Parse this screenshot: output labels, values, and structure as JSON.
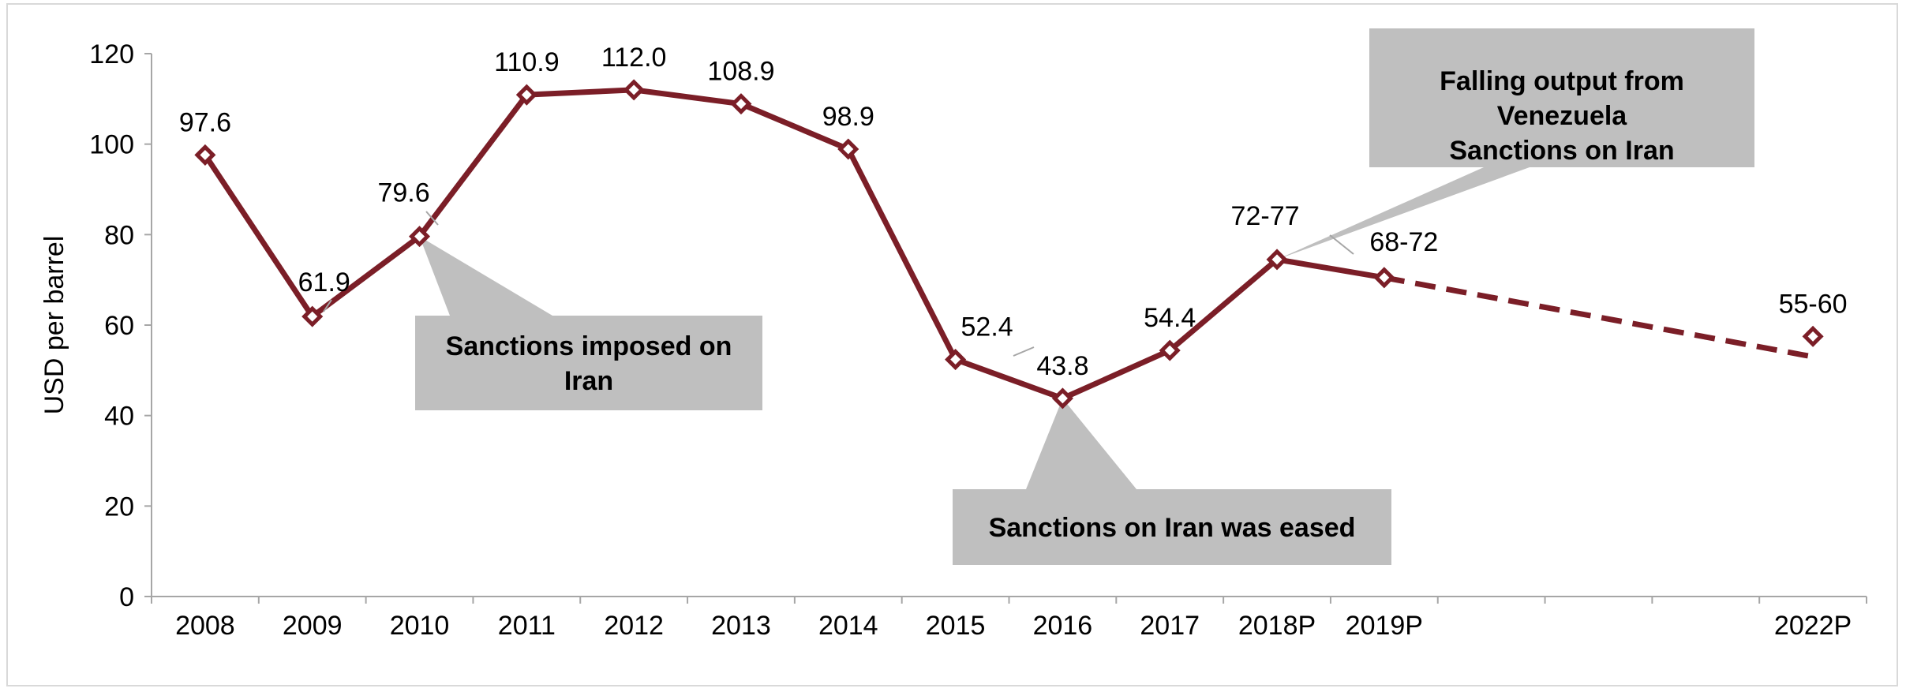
{
  "chart_data": {
    "type": "line",
    "title": "",
    "xlabel": "",
    "ylabel": "USD per barrel",
    "ylim": [
      0,
      120
    ],
    "yticks": [
      0,
      20,
      40,
      60,
      80,
      100,
      120
    ],
    "grid": false,
    "legend": "none",
    "x_categories": [
      "2008",
      "2009",
      "2010",
      "2011",
      "2012",
      "2013",
      "2014",
      "2015",
      "2016",
      "2017",
      "2018P",
      "2019P",
      "",
      "",
      "",
      "2022P"
    ],
    "series": [
      {
        "color": "#7b1e27",
        "points": [
          {
            "x": "2008",
            "y": 97.6,
            "label": "97.6"
          },
          {
            "x": "2009",
            "y": 61.9,
            "label": "61.9"
          },
          {
            "x": "2010",
            "y": 79.6,
            "label": "79.6"
          },
          {
            "x": "2011",
            "y": 110.9,
            "label": "110.9"
          },
          {
            "x": "2012",
            "y": 112.0,
            "label": "112.0"
          },
          {
            "x": "2013",
            "y": 108.9,
            "label": "108.9"
          },
          {
            "x": "2014",
            "y": 98.9,
            "label": "98.9"
          },
          {
            "x": "2015",
            "y": 52.4,
            "label": "52.4"
          },
          {
            "x": "2016",
            "y": 43.8,
            "label": "43.8"
          },
          {
            "x": "2017",
            "y": 54.4,
            "label": "54.4"
          },
          {
            "x": "2018P",
            "y": 74.5,
            "label": "72-77"
          },
          {
            "x": "2019P",
            "y": 70.5,
            "label": "68-72"
          },
          {
            "x": "2022P",
            "y": 57.5,
            "label": "55-60"
          }
        ],
        "dashed_projection_end": 53
      }
    ],
    "annotations": [
      {
        "text": "Sanctions imposed on Iran",
        "points_to": "2010"
      },
      {
        "text": "Sanctions on Iran was eased",
        "points_to": "2016"
      },
      {
        "text": "Falling output from Venezuela Sanctions on Iran",
        "points_to": "2018P"
      }
    ],
    "colors": {
      "line": "#7b1e27",
      "callout_fill": "#bfbfbf",
      "axis": "#a6a6a6"
    }
  }
}
